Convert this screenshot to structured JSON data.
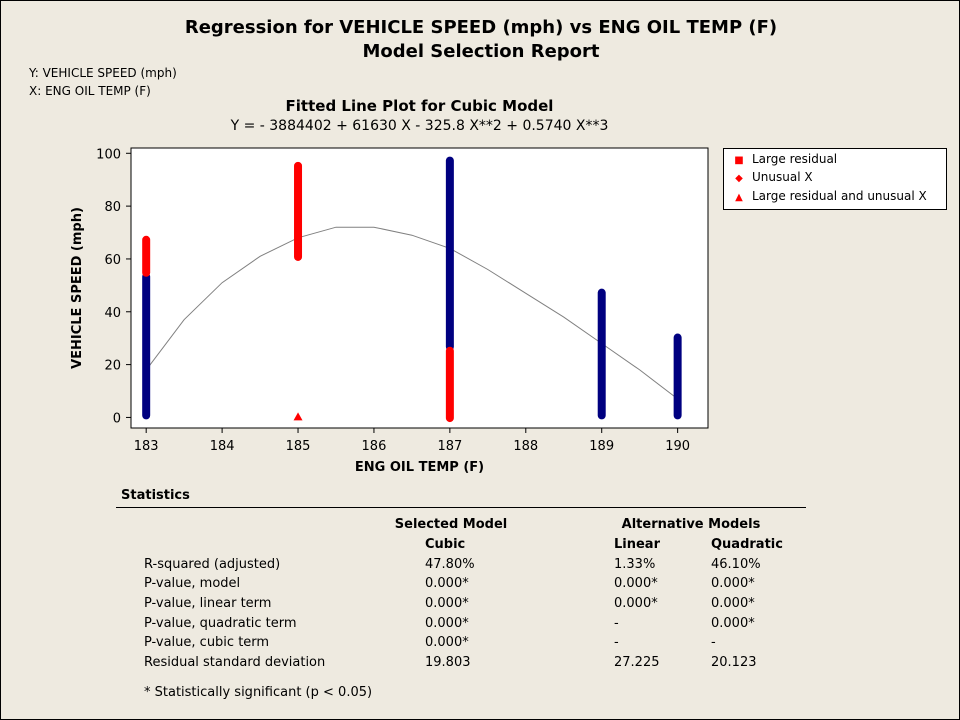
{
  "report": {
    "title_line1": "Regression for VEHICLE SPEED (mph) vs ENG OIL TEMP (F)",
    "title_line2": "Model Selection Report",
    "y_var": "Y: VEHICLE SPEED (mph)",
    "x_var": "X: ENG OIL TEMP (F)"
  },
  "plot": {
    "title": "Fitted Line Plot for Cubic Model",
    "equation": "Y =  - 3884402 + 61630 X - 325.8 X**2 + 0.5740 X**3",
    "legend": [
      {
        "symbol": "■",
        "label": "Large residual"
      },
      {
        "symbol": "◆",
        "label": "Unusual X"
      },
      {
        "symbol": "▲",
        "label": "Large residual and unusual X"
      }
    ]
  },
  "chart_data": {
    "type": "scatter",
    "title": "Fitted Line Plot for Cubic Model",
    "xlabel": "ENG OIL TEMP (F)",
    "ylabel": "VEHICLE SPEED (mph)",
    "xlim": [
      182.8,
      190.4
    ],
    "ylim": [
      -4,
      102
    ],
    "xticks": [
      183,
      184,
      185,
      186,
      187,
      188,
      189,
      190
    ],
    "yticks": [
      0,
      20,
      40,
      60,
      80,
      100
    ],
    "colors": {
      "normal": "#000080",
      "large_residual": "#ff0000",
      "fit_line": "#808080"
    },
    "fit": {
      "type": "cubic",
      "coefficients": [
        -3884402,
        61630,
        -325.8,
        0.574
      ]
    },
    "fit_curve": [
      [
        183,
        18
      ],
      [
        183.5,
        37
      ],
      [
        184,
        51
      ],
      [
        184.5,
        61
      ],
      [
        185,
        68
      ],
      [
        185.5,
        72
      ],
      [
        186,
        72
      ],
      [
        186.5,
        69
      ],
      [
        187,
        64
      ],
      [
        187.5,
        56
      ],
      [
        188,
        47
      ],
      [
        188.5,
        38
      ],
      [
        189,
        28
      ],
      [
        189.5,
        18
      ],
      [
        190,
        7
      ]
    ],
    "series": [
      {
        "name": "",
        "x": 183,
        "y_from": 0,
        "y_to": 54,
        "class": "normal"
      },
      {
        "name": "Large residual",
        "x": 183,
        "y_from": 54,
        "y_to": 68,
        "class": "large_residual"
      },
      {
        "name": "Large residual",
        "x": 185,
        "y_from": 60,
        "y_to": 96,
        "class": "large_residual"
      },
      {
        "name": "Large residual and unusual X",
        "x": 185,
        "y": 0,
        "class": "large_residual_unusual"
      },
      {
        "name": "",
        "x": 187,
        "y_from": 26,
        "y_to": 98,
        "class": "normal"
      },
      {
        "name": "Large residual",
        "x": 187,
        "y_from": -1,
        "y_to": 26,
        "class": "large_residual"
      },
      {
        "name": "",
        "x": 189,
        "y_from": 0,
        "y_to": 48,
        "class": "normal"
      },
      {
        "name": "",
        "x": 190,
        "y_from": 0,
        "y_to": 31,
        "class": "normal"
      }
    ]
  },
  "statistics": {
    "heading": "Statistics",
    "selected_header": "Selected Model",
    "alternative_header": "Alternative Models",
    "columns": [
      "Cubic",
      "Linear",
      "Quadratic"
    ],
    "rows": [
      {
        "label": "R-squared (adjusted)",
        "values": [
          "47.80%",
          "1.33%",
          "46.10%"
        ]
      },
      {
        "label": "P-value, model",
        "values": [
          "0.000*",
          "0.000*",
          "0.000*"
        ]
      },
      {
        "label": "P-value, linear term",
        "values": [
          "0.000*",
          "0.000*",
          "0.000*"
        ]
      },
      {
        "label": "P-value, quadratic term",
        "values": [
          "0.000*",
          "-",
          "0.000*"
        ]
      },
      {
        "label": "P-value, cubic term",
        "values": [
          "0.000*",
          "-",
          "-"
        ]
      },
      {
        "label": "Residual standard deviation",
        "values": [
          "19.803",
          "27.225",
          "20.123"
        ]
      }
    ],
    "footnote": "* Statistically significant (p < 0.05)"
  }
}
